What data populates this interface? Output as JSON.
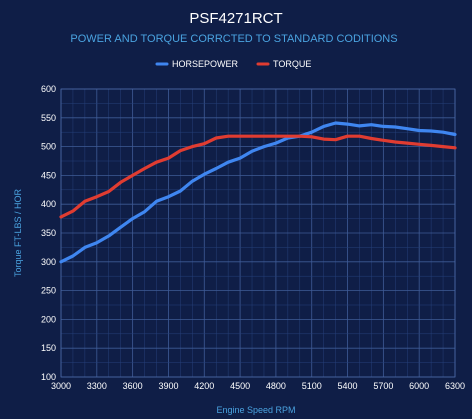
{
  "chart_data": {
    "type": "line",
    "title": "PSF4271RCT",
    "subtitle": "POWER AND TORQUE CORRCTED TO STANDARD CODITIONS",
    "xlabel": "Engine Speed RPM",
    "ylabel": "Torque FT-LBS / HOR",
    "xlim": [
      3000,
      6300
    ],
    "ylim": [
      100,
      600
    ],
    "xticks": [
      3000,
      3300,
      3600,
      3900,
      4200,
      4500,
      4800,
      5100,
      5400,
      5700,
      6000,
      6300
    ],
    "yticks": [
      100,
      150,
      200,
      250,
      300,
      350,
      400,
      450,
      500,
      550,
      600
    ],
    "x_minor_step": 100,
    "y_minor_step": 25,
    "grid": true,
    "legend_position": "top-center",
    "series": [
      {
        "name": "HORSEPOWER",
        "color": "#3f86f0",
        "points": [
          [
            3000,
            300
          ],
          [
            3100,
            310
          ],
          [
            3200,
            325
          ],
          [
            3300,
            333
          ],
          [
            3400,
            345
          ],
          [
            3500,
            360
          ],
          [
            3600,
            375
          ],
          [
            3700,
            387
          ],
          [
            3800,
            405
          ],
          [
            3900,
            413
          ],
          [
            4000,
            423
          ],
          [
            4100,
            440
          ],
          [
            4200,
            452
          ],
          [
            4300,
            462
          ],
          [
            4400,
            473
          ],
          [
            4500,
            480
          ],
          [
            4600,
            492
          ],
          [
            4700,
            500
          ],
          [
            4800,
            506
          ],
          [
            4900,
            515
          ],
          [
            5000,
            518
          ],
          [
            5100,
            525
          ],
          [
            5200,
            535
          ],
          [
            5300,
            541
          ],
          [
            5400,
            539
          ],
          [
            5500,
            536
          ],
          [
            5600,
            538
          ],
          [
            5700,
            535
          ],
          [
            5800,
            534
          ],
          [
            5900,
            531
          ],
          [
            6000,
            528
          ],
          [
            6100,
            527
          ],
          [
            6200,
            525
          ],
          [
            6300,
            521
          ]
        ]
      },
      {
        "name": "TORQUE",
        "color": "#e03c31",
        "points": [
          [
            3000,
            378
          ],
          [
            3100,
            388
          ],
          [
            3200,
            405
          ],
          [
            3300,
            413
          ],
          [
            3400,
            422
          ],
          [
            3500,
            438
          ],
          [
            3600,
            450
          ],
          [
            3700,
            462
          ],
          [
            3800,
            473
          ],
          [
            3900,
            480
          ],
          [
            4000,
            493
          ],
          [
            4100,
            500
          ],
          [
            4200,
            505
          ],
          [
            4300,
            515
          ],
          [
            4400,
            518
          ],
          [
            4500,
            518
          ],
          [
            4600,
            518
          ],
          [
            4700,
            518
          ],
          [
            4800,
            518
          ],
          [
            4900,
            518
          ],
          [
            5000,
            518
          ],
          [
            5100,
            517
          ],
          [
            5200,
            513
          ],
          [
            5300,
            512
          ],
          [
            5400,
            518
          ],
          [
            5500,
            518
          ],
          [
            5600,
            514
          ],
          [
            5700,
            511
          ],
          [
            5800,
            508
          ],
          [
            5900,
            506
          ],
          [
            6000,
            504
          ],
          [
            6100,
            502
          ],
          [
            6200,
            500
          ],
          [
            6300,
            498
          ]
        ]
      }
    ]
  }
}
